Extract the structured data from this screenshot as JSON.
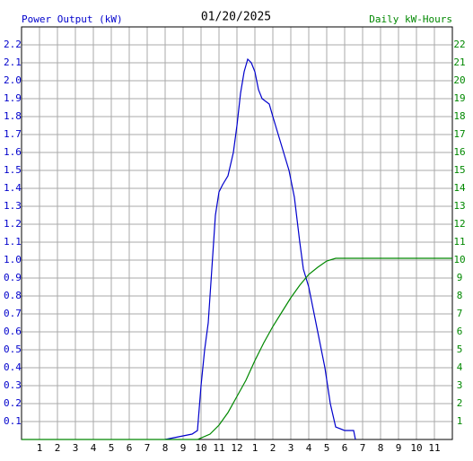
{
  "chart_data": {
    "type": "line",
    "title": "01/20/2025",
    "y_label": "Power Output (kW)",
    "y2_label": "Daily kW-Hours",
    "grid": true,
    "xlim": [
      0,
      24
    ],
    "ylim": [
      0,
      2.3
    ],
    "y2lim": [
      0,
      23
    ],
    "xticks": [
      1,
      2,
      3,
      4,
      5,
      6,
      7,
      8,
      9,
      10,
      11,
      12,
      {
        "value": 13,
        "label": "1"
      },
      {
        "value": 14,
        "label": "2"
      },
      {
        "value": 15,
        "label": "3"
      },
      {
        "value": 16,
        "label": "4"
      },
      {
        "value": 17,
        "label": "5"
      },
      {
        "value": 18,
        "label": "6"
      },
      {
        "value": 19,
        "label": "7"
      },
      {
        "value": 20,
        "label": "8"
      },
      {
        "value": 21,
        "label": "9"
      },
      {
        "value": 22,
        "label": "10"
      },
      {
        "value": 23,
        "label": "11"
      }
    ],
    "yticks": [
      0.1,
      0.2,
      0.3,
      0.4,
      0.5,
      0.6,
      0.7,
      0.8,
      0.9,
      {
        "value": 1,
        "label": "1.0"
      },
      1.1,
      1.2,
      1.3,
      1.4,
      1.5,
      1.6,
      1.7,
      1.8,
      1.9,
      {
        "value": 2,
        "label": "2.0"
      },
      2.1,
      2.2
    ],
    "y2ticks": [
      1,
      2,
      3,
      4,
      5,
      6,
      7,
      8,
      9,
      10,
      11,
      12,
      13,
      14,
      15,
      16,
      17,
      18,
      19,
      20,
      21,
      22
    ],
    "series": [
      {
        "name": "Power Output (kW)",
        "color": "#0000cc",
        "x": [
          8.0,
          8.5,
          9.0,
          9.5,
          9.8,
          10.0,
          10.2,
          10.4,
          10.6,
          10.8,
          11.0,
          11.2,
          11.5,
          11.8,
          12.0,
          12.2,
          12.4,
          12.6,
          12.8,
          13.0,
          13.2,
          13.4,
          13.8,
          14.0,
          14.3,
          14.6,
          14.9,
          15.2,
          15.5,
          15.7,
          16.0,
          16.3,
          16.6,
          16.9,
          17.2,
          17.5,
          18.0,
          18.5,
          18.6
        ],
        "values": [
          0,
          0.01,
          0.02,
          0.03,
          0.05,
          0.3,
          0.5,
          0.65,
          0.95,
          1.25,
          1.38,
          1.42,
          1.47,
          1.6,
          1.75,
          1.93,
          2.05,
          2.12,
          2.1,
          2.05,
          1.95,
          1.9,
          1.87,
          1.8,
          1.7,
          1.6,
          1.5,
          1.35,
          1.1,
          0.95,
          0.85,
          0.7,
          0.55,
          0.4,
          0.2,
          0.07,
          0.05,
          0.05,
          0
        ]
      },
      {
        "name": "Daily kW-Hours",
        "color": "#008800",
        "axis": "y2",
        "x": [
          0,
          9.8,
          10.5,
          11.0,
          11.5,
          12.0,
          12.5,
          13.0,
          13.5,
          14.0,
          14.5,
          15.0,
          15.5,
          16.0,
          16.5,
          17.0,
          17.5,
          24
        ],
        "values": [
          0,
          0,
          0.3,
          0.8,
          1.5,
          2.4,
          3.3,
          4.4,
          5.4,
          6.3,
          7.1,
          7.9,
          8.6,
          9.2,
          9.6,
          9.95,
          10.1,
          10.1
        ]
      }
    ]
  }
}
